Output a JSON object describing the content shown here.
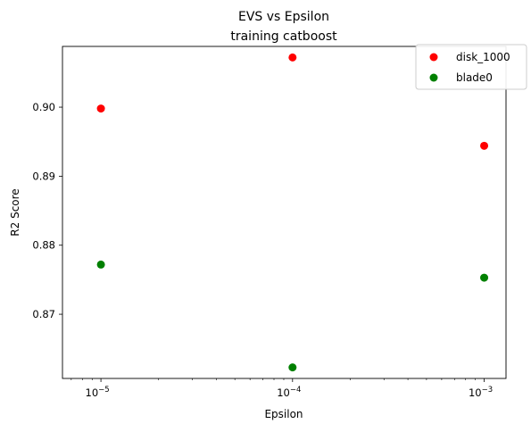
{
  "chart_data": {
    "type": "scatter",
    "title": "EVS vs Epsilon",
    "subtitle": "training catboost",
    "xlabel": "Epsilon",
    "ylabel": "R2 Score",
    "x_scale": "log",
    "x": [
      1e-05,
      0.0001,
      0.001
    ],
    "x_tick_labels": [
      {
        "value": 1e-05,
        "base": "10",
        "exponent": "−5"
      },
      {
        "value": 0.0001,
        "base": "10",
        "exponent": "−4"
      },
      {
        "value": 0.001,
        "base": "10",
        "exponent": "−3"
      }
    ],
    "y_ticks": [
      0.87,
      0.88,
      0.89,
      0.9
    ],
    "y_tick_labels": [
      "0.87",
      "0.88",
      "0.89",
      "0.90"
    ],
    "xlim": [
      6.3e-06,
      0.0013
    ],
    "ylim": [
      0.8607,
      0.9088
    ],
    "grid": false,
    "legend_position": "top-right",
    "series": [
      {
        "name": "disk_1000",
        "color": "#ff0000",
        "values": [
          0.8998,
          0.9072,
          0.8944
        ]
      },
      {
        "name": "blade0",
        "color": "#008000",
        "values": [
          0.8772,
          0.8623,
          0.8753
        ]
      }
    ]
  }
}
